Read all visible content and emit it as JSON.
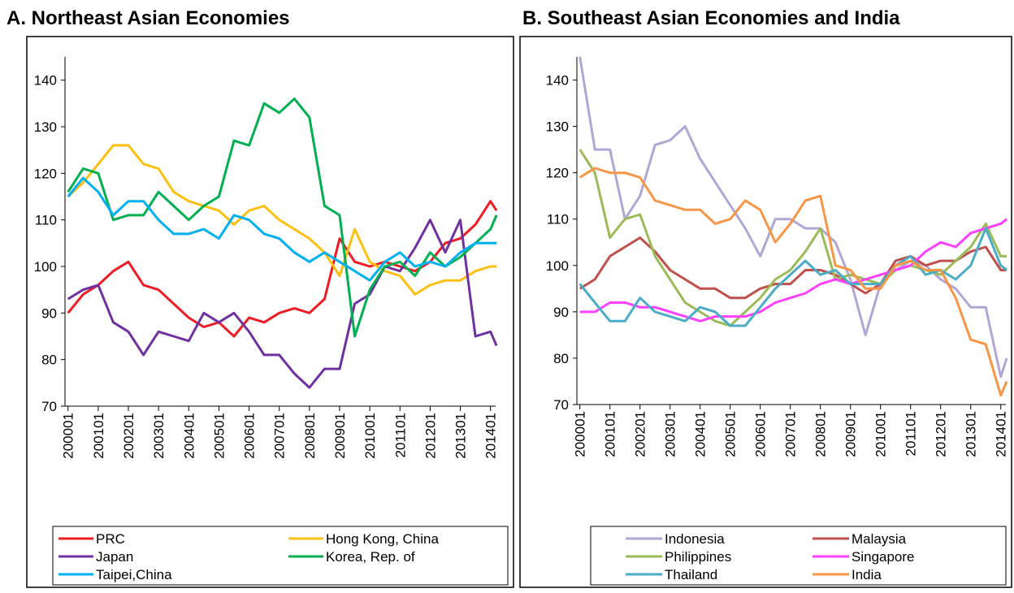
{
  "chart_data": [
    {
      "type": "line",
      "title": "A.  Northeast Asian Economies",
      "x": [
        2000.0,
        2000.5,
        2001.0,
        2001.5,
        2002.0,
        2002.5,
        2003.0,
        2003.5,
        2004.0,
        2004.5,
        2005.0,
        2005.5,
        2006.0,
        2006.5,
        2007.0,
        2007.5,
        2008.0,
        2008.5,
        2009.0,
        2009.5,
        2010.0,
        2010.5,
        2011.0,
        2011.5,
        2012.0,
        2012.5,
        2013.0,
        2013.5,
        2014.0,
        2014.2
      ],
      "xlim": [
        1999.9,
        2014.17
      ],
      "xticks": [
        {
          "value": 2000,
          "label": "200001"
        },
        {
          "value": 2001,
          "label": "200101"
        },
        {
          "value": 2002,
          "label": "200201"
        },
        {
          "value": 2003,
          "label": "200301"
        },
        {
          "value": 2004,
          "label": "200401"
        },
        {
          "value": 2005,
          "label": "200501"
        },
        {
          "value": 2006,
          "label": "200601"
        },
        {
          "value": 2007,
          "label": "200701"
        },
        {
          "value": 2008,
          "label": "200801"
        },
        {
          "value": 2009,
          "label": "200901"
        },
        {
          "value": 2010,
          "label": "201001"
        },
        {
          "value": 2011,
          "label": "201101"
        },
        {
          "value": 2012,
          "label": "201201"
        },
        {
          "value": 2013,
          "label": "201301"
        },
        {
          "value": 2014,
          "label": "201401"
        }
      ],
      "ylim": [
        70,
        145
      ],
      "yticks": [
        70,
        80,
        90,
        100,
        110,
        120,
        130,
        140
      ],
      "series": [
        {
          "name": "PRC",
          "color": "#ee1c24",
          "values": [
            90,
            94,
            96,
            99,
            101,
            96,
            95,
            92,
            89,
            87,
            88,
            85,
            89,
            88,
            90,
            91,
            90,
            93,
            106,
            101,
            100,
            101,
            100,
            99,
            101,
            105,
            106,
            109,
            114,
            112
          ]
        },
        {
          "name": "Hong Kong, China",
          "color": "#fcc010",
          "values": [
            115,
            118,
            122,
            126,
            126,
            122,
            121,
            116,
            114,
            113,
            112,
            109,
            112,
            113,
            110,
            108,
            106,
            103,
            98,
            108,
            101,
            99,
            98,
            94,
            96,
            97,
            97,
            99,
            100,
            100
          ]
        },
        {
          "name": "Japan",
          "color": "#7030a0",
          "values": [
            93,
            95,
            96,
            88,
            86,
            81,
            86,
            85,
            84,
            90,
            88,
            90,
            86,
            81,
            81,
            77,
            74,
            78,
            78,
            92,
            94,
            100,
            99,
            104,
            110,
            103,
            110,
            85,
            86,
            83
          ]
        },
        {
          "name": "Korea, Rep. of",
          "color": "#00b050",
          "values": [
            116,
            121,
            120,
            110,
            111,
            111,
            116,
            113,
            110,
            113,
            115,
            127,
            126,
            135,
            133,
            136,
            132,
            113,
            111,
            85,
            95,
            100,
            101,
            98,
            103,
            100,
            102,
            105,
            108,
            111
          ]
        },
        {
          "name": "Taipei,China",
          "color": "#00b0f0",
          "values": [
            115,
            119,
            116,
            111,
            114,
            114,
            110,
            107,
            107,
            108,
            106,
            111,
            110,
            107,
            106,
            103,
            101,
            103,
            101,
            99,
            97,
            101,
            103,
            100,
            101,
            100,
            103,
            105,
            105,
            105
          ]
        }
      ]
    },
    {
      "type": "line",
      "title": "B. Southeast Asian Economies and India",
      "x": [
        2000.0,
        2000.5,
        2001.0,
        2001.5,
        2002.0,
        2002.5,
        2003.0,
        2003.5,
        2004.0,
        2004.5,
        2005.0,
        2005.5,
        2006.0,
        2006.5,
        2007.0,
        2007.5,
        2008.0,
        2008.5,
        2009.0,
        2009.5,
        2010.0,
        2010.5,
        2011.0,
        2011.5,
        2012.0,
        2012.5,
        2013.0,
        2013.5,
        2014.0,
        2014.2
      ],
      "xlim": [
        1999.9,
        2014.17
      ],
      "xticks": [
        {
          "value": 2000,
          "label": "200001"
        },
        {
          "value": 2001,
          "label": "200101"
        },
        {
          "value": 2002,
          "label": "200201"
        },
        {
          "value": 2003,
          "label": "200301"
        },
        {
          "value": 2004,
          "label": "200401"
        },
        {
          "value": 2005,
          "label": "200501"
        },
        {
          "value": 2006,
          "label": "200601"
        },
        {
          "value": 2007,
          "label": "200701"
        },
        {
          "value": 2008,
          "label": "200801"
        },
        {
          "value": 2009,
          "label": "200901"
        },
        {
          "value": 2010,
          "label": "201001"
        },
        {
          "value": 2011,
          "label": "201101"
        },
        {
          "value": 2012,
          "label": "201201"
        },
        {
          "value": 2013,
          "label": "201301"
        },
        {
          "value": 2014,
          "label": "201401"
        }
      ],
      "ylim": [
        70,
        145
      ],
      "yticks": [
        70,
        80,
        90,
        100,
        110,
        120,
        130,
        140
      ],
      "series": [
        {
          "name": "Indonesia",
          "color": "#b1a6d4",
          "values": [
            145,
            125,
            125,
            110,
            115,
            126,
            127,
            130,
            123,
            118,
            113,
            108,
            102,
            110,
            110,
            108,
            108,
            105,
            97,
            85,
            96,
            99,
            101,
            100,
            97,
            95,
            91,
            91,
            76,
            80
          ]
        },
        {
          "name": "Malaysia",
          "color": "#c0504d",
          "values": [
            95,
            97,
            102,
            104,
            106,
            103,
            99,
            97,
            95,
            95,
            93,
            93,
            95,
            96,
            96,
            99,
            99,
            98,
            96,
            94,
            96,
            101,
            102,
            100,
            101,
            101,
            103,
            104,
            99,
            99
          ]
        },
        {
          "name": "Philippines",
          "color": "#9bbb59",
          "values": [
            125,
            120,
            106,
            110,
            111,
            102,
            97,
            92,
            90,
            88,
            87,
            90,
            93,
            97,
            99,
            103,
            108,
            97,
            98,
            97,
            96,
            99,
            100,
            99,
            98,
            101,
            104,
            109,
            102,
            102
          ]
        },
        {
          "name": "Singapore",
          "color": "#ff40ff",
          "values": [
            90,
            90,
            92,
            92,
            91,
            91,
            90,
            89,
            88,
            89,
            89,
            89,
            90,
            92,
            93,
            94,
            96,
            97,
            96,
            97,
            98,
            99,
            100,
            103,
            105,
            104,
            107,
            108,
            109,
            110
          ]
        },
        {
          "name": "Thailand",
          "color": "#4bacc6",
          "values": [
            96,
            92,
            88,
            88,
            93,
            90,
            89,
            88,
            91,
            90,
            87,
            87,
            91,
            95,
            98,
            101,
            98,
            99,
            96,
            96,
            96,
            100,
            102,
            98,
            99,
            97,
            100,
            108,
            100,
            99
          ]
        },
        {
          "name": "India",
          "color": "#f79646",
          "values": [
            119,
            121,
            120,
            120,
            119,
            114,
            113,
            112,
            112,
            109,
            110,
            114,
            112,
            105,
            109,
            114,
            115,
            100,
            99,
            95,
            95,
            100,
            101,
            99,
            99,
            93,
            84,
            83,
            72,
            75
          ]
        }
      ]
    }
  ]
}
